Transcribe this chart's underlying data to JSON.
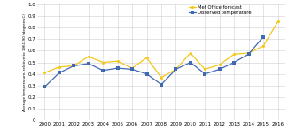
{
  "years": [
    2000,
    2001,
    2002,
    2003,
    2004,
    2005,
    2006,
    2007,
    2008,
    2009,
    2010,
    2011,
    2012,
    2013,
    2014,
    2015,
    2016
  ],
  "met_office": [
    0.41,
    0.46,
    0.47,
    0.55,
    0.5,
    0.51,
    0.45,
    0.54,
    0.37,
    0.44,
    0.58,
    0.44,
    0.48,
    0.57,
    0.58,
    0.64,
    0.85
  ],
  "observed": [
    0.29,
    0.41,
    0.47,
    0.49,
    0.43,
    0.45,
    0.44,
    0.4,
    0.31,
    0.44,
    0.5,
    0.4,
    0.44,
    0.5,
    0.57,
    0.72,
    null
  ],
  "met_color": "#f5c518",
  "obs_color": "#4169b0",
  "ylabel": "Average temperature, relative to 1961-90 (degrees C)",
  "xlim": [
    1999.5,
    2016.5
  ],
  "ylim": [
    0.0,
    1.0
  ],
  "yticks": [
    0.1,
    0.2,
    0.3,
    0.4,
    0.5,
    0.6,
    0.7,
    0.8,
    0.9,
    1.0
  ],
  "y0_label": "0",
  "legend_met": "Met Office forecast",
  "legend_obs": "Observed temperature",
  "grid_color": "#d0d0d0",
  "background_color": "#ffffff",
  "tick_fontsize": 4.0,
  "ylabel_fontsize": 3.0,
  "legend_fontsize": 3.8,
  "linewidth": 0.9,
  "markersize": 2.2
}
